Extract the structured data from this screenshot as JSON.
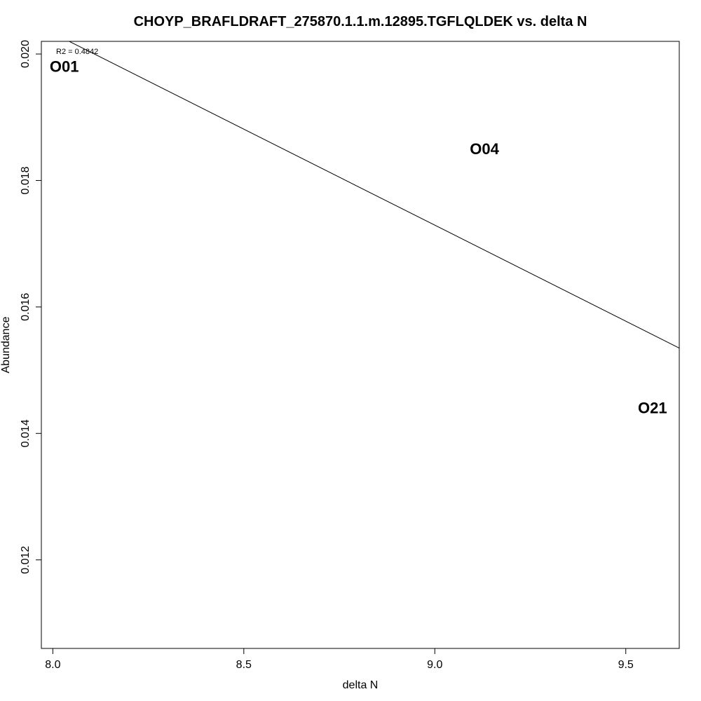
{
  "chart_data": {
    "type": "scatter",
    "title": "CHOYP_BRAFLDRAFT_275870.1.1.m.12895.TGFLQLDEK vs. delta N",
    "xlabel": "delta N",
    "ylabel": "Abundance",
    "xlim": [
      7.97,
      9.64
    ],
    "ylim": [
      0.0106,
      0.0202
    ],
    "x_ticks": [
      8.0,
      8.5,
      9.0,
      9.5
    ],
    "x_tick_labels": [
      "8.0",
      "8.5",
      "9.0",
      "9.5"
    ],
    "y_ticks": [
      0.012,
      0.014,
      0.016,
      0.018,
      0.02
    ],
    "y_tick_labels": [
      "0.012",
      "0.014",
      "0.016",
      "0.018",
      "0.020"
    ],
    "points": [
      {
        "label": "O01",
        "x": 8.03,
        "y": 0.0198
      },
      {
        "label": "O04",
        "x": 9.13,
        "y": 0.0185
      },
      {
        "label": "O21",
        "x": 9.57,
        "y": 0.0144
      }
    ],
    "fit_line": {
      "x": [
        8.0,
        9.64
      ],
      "y": [
        0.02033,
        0.01535
      ]
    },
    "annotation": "R2 = 0.4842",
    "grid": false,
    "legend": "none"
  }
}
